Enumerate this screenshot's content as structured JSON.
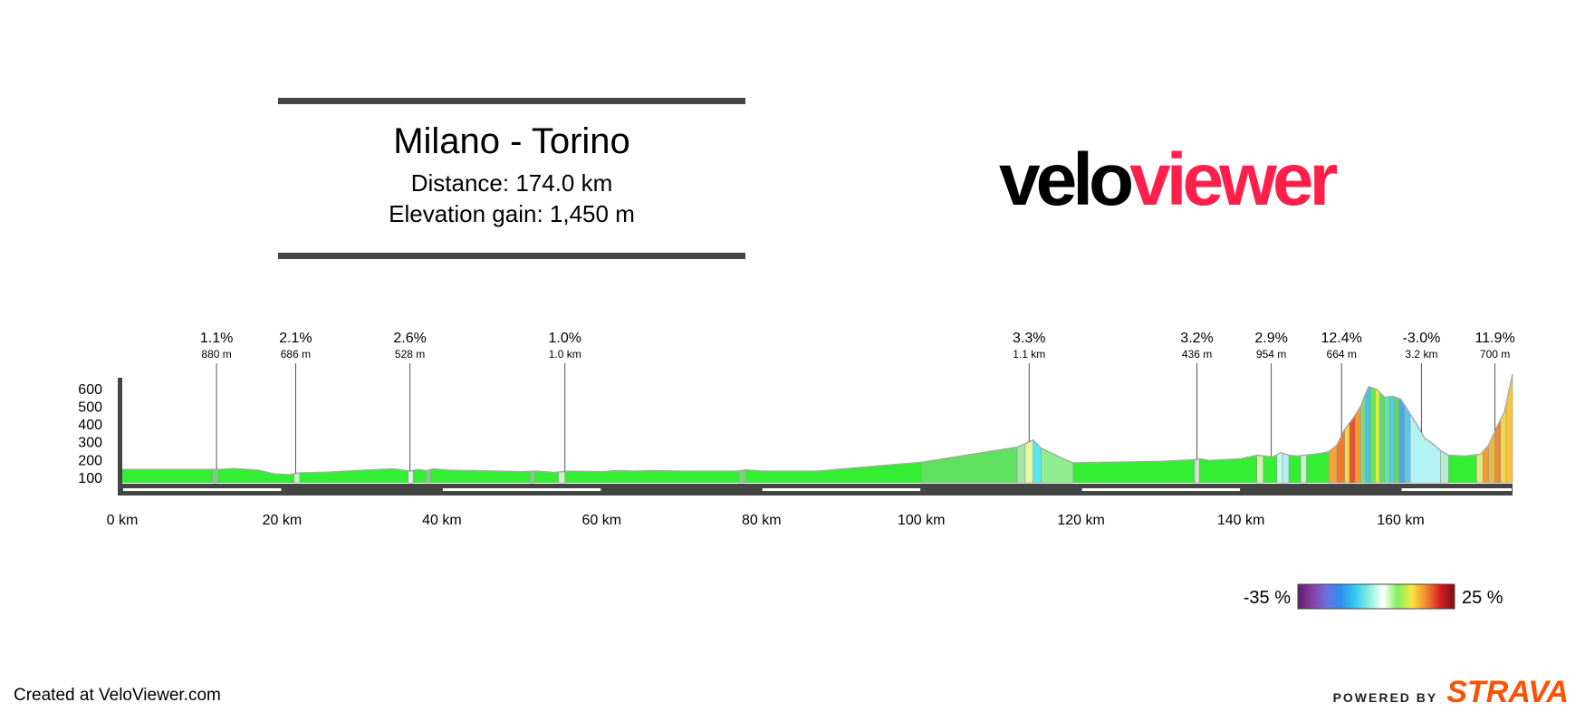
{
  "header": {
    "title": "Milano - Torino",
    "distance": "Distance: 174.0 km",
    "elevation_gain": "Elevation gain: 1,450 m"
  },
  "logo": {
    "part1": "velo",
    "part2": "viewer"
  },
  "footer": {
    "created": "Created at VeloViewer.com",
    "powered_by": "POWERED BY",
    "brand": "STRAVA"
  },
  "legend": {
    "min_label": "-35 %",
    "max_label": "25 %"
  },
  "colors": {
    "logo_accent": "#ff1f4b",
    "strava": "#fc5200",
    "axis": "#444444",
    "base_fill": "#33ee33"
  },
  "chart_data": {
    "type": "area",
    "title": "Milano - Torino",
    "x_unit": "km",
    "x_ticks": [
      "0 km",
      "20 km",
      "40 km",
      "60 km",
      "80 km",
      "100 km",
      "120 km",
      "140 km",
      "160 km"
    ],
    "x_tick_values": [
      0,
      20,
      40,
      60,
      80,
      100,
      120,
      140,
      160
    ],
    "y_ticks": [
      "100",
      "200",
      "300",
      "400",
      "500",
      "600"
    ],
    "y_tick_values": [
      100,
      200,
      300,
      400,
      500,
      600
    ],
    "xlim": [
      0,
      174
    ],
    "ylim": [
      60,
      700
    ],
    "profile": [
      [
        0,
        145
      ],
      [
        12,
        145
      ],
      [
        14,
        150
      ],
      [
        17,
        140
      ],
      [
        19,
        120
      ],
      [
        21,
        115
      ],
      [
        22,
        125
      ],
      [
        26,
        130
      ],
      [
        30,
        140
      ],
      [
        34,
        148
      ],
      [
        36,
        135
      ],
      [
        37,
        145
      ],
      [
        38,
        138
      ],
      [
        39,
        148
      ],
      [
        41,
        140
      ],
      [
        44,
        138
      ],
      [
        50,
        132
      ],
      [
        52,
        135
      ],
      [
        54,
        128
      ],
      [
        56,
        135
      ],
      [
        60,
        132
      ],
      [
        62,
        138
      ],
      [
        64,
        135
      ],
      [
        66,
        138
      ],
      [
        70,
        135
      ],
      [
        77,
        135
      ],
      [
        78,
        142
      ],
      [
        80,
        135
      ],
      [
        87,
        135
      ],
      [
        100,
        185
      ],
      [
        112,
        270
      ],
      [
        113,
        290
      ],
      [
        114,
        310
      ],
      [
        115,
        265
      ],
      [
        118,
        200
      ],
      [
        119,
        182
      ],
      [
        130,
        190
      ],
      [
        134,
        200
      ],
      [
        135,
        205
      ],
      [
        136,
        195
      ],
      [
        140,
        205
      ],
      [
        142,
        225
      ],
      [
        144,
        215
      ],
      [
        145,
        240
      ],
      [
        146,
        225
      ],
      [
        147,
        220
      ],
      [
        150,
        235
      ],
      [
        151,
        245
      ],
      [
        152,
        280
      ],
      [
        153,
        370
      ],
      [
        154,
        430
      ],
      [
        155,
        500
      ],
      [
        155.5,
        560
      ],
      [
        156,
        610
      ],
      [
        157,
        595
      ],
      [
        158,
        550
      ],
      [
        159,
        555
      ],
      [
        160,
        540
      ],
      [
        161,
        470
      ],
      [
        162,
        400
      ],
      [
        163,
        320
      ],
      [
        164,
        290
      ],
      [
        165,
        250
      ],
      [
        166,
        225
      ],
      [
        168,
        220
      ],
      [
        170,
        230
      ],
      [
        171,
        280
      ],
      [
        172,
        380
      ],
      [
        173,
        470
      ],
      [
        174,
        680
      ]
    ],
    "segments": [
      {
        "from": 11.3,
        "to": 12.0,
        "color": "#7bd07b"
      },
      {
        "from": 21.5,
        "to": 22.2,
        "color": "#c8f5c8"
      },
      {
        "from": 35.8,
        "to": 36.4,
        "color": "#f2f2f2"
      },
      {
        "from": 38.0,
        "to": 38.6,
        "color": "#7bd07b"
      },
      {
        "from": 51.0,
        "to": 51.6,
        "color": "#7bd07b"
      },
      {
        "from": 54.6,
        "to": 55.4,
        "color": "#c8f5c8"
      },
      {
        "from": 77.2,
        "to": 78.0,
        "color": "#7bd07b"
      },
      {
        "from": 100,
        "to": 112,
        "color": "#5fe05f"
      },
      {
        "from": 112,
        "to": 113,
        "color": "#a4e6a4"
      },
      {
        "from": 113,
        "to": 114,
        "color": "#e4f7a2"
      },
      {
        "from": 114,
        "to": 115,
        "color": "#55e8f0"
      },
      {
        "from": 115,
        "to": 119,
        "color": "#8fec8f"
      },
      {
        "from": 134.2,
        "to": 134.8,
        "color": "#dcdcdc"
      },
      {
        "from": 142,
        "to": 142.8,
        "color": "#d6f0b4"
      },
      {
        "from": 144.5,
        "to": 145.2,
        "color": "#c8fff0"
      },
      {
        "from": 145.2,
        "to": 146,
        "color": "#b9ecf7"
      },
      {
        "from": 147.5,
        "to": 148.2,
        "color": "#c8f5c8"
      },
      {
        "from": 151,
        "to": 152,
        "color": "#f4a23a"
      },
      {
        "from": 152,
        "to": 153,
        "color": "#f07a2a"
      },
      {
        "from": 153,
        "to": 153.6,
        "color": "#f5d640"
      },
      {
        "from": 153.6,
        "to": 154.3,
        "color": "#e6502a"
      },
      {
        "from": 154.3,
        "to": 155,
        "color": "#f59b2e"
      },
      {
        "from": 155,
        "to": 155.6,
        "color": "#7fd87f"
      },
      {
        "from": 155.6,
        "to": 156.2,
        "color": "#49c3e6"
      },
      {
        "from": 156.2,
        "to": 156.8,
        "color": "#62e65b"
      },
      {
        "from": 156.8,
        "to": 157.4,
        "color": "#e0ea3a"
      },
      {
        "from": 157.4,
        "to": 158,
        "color": "#4fe07a"
      },
      {
        "from": 158,
        "to": 158.6,
        "color": "#6ae6a0"
      },
      {
        "from": 158.6,
        "to": 159.2,
        "color": "#4fd0e6"
      },
      {
        "from": 159.2,
        "to": 159.8,
        "color": "#50e060"
      },
      {
        "from": 159.8,
        "to": 160.5,
        "color": "#4ba9e6"
      },
      {
        "from": 160.5,
        "to": 161.2,
        "color": "#5ac9f0"
      },
      {
        "from": 161.2,
        "to": 165,
        "color": "#b3f3f3"
      },
      {
        "from": 165,
        "to": 166,
        "color": "#b5ecd0"
      },
      {
        "from": 169.5,
        "to": 170.3,
        "color": "#e5e880"
      },
      {
        "from": 170.3,
        "to": 171,
        "color": "#f59b2e"
      },
      {
        "from": 171,
        "to": 171.8,
        "color": "#f4b73a"
      },
      {
        "from": 171.8,
        "to": 172.5,
        "color": "#e88a30"
      },
      {
        "from": 172.5,
        "to": 173.2,
        "color": "#f6d64a"
      },
      {
        "from": 173.2,
        "to": 174,
        "color": "#f7c43e"
      }
    ],
    "annotations": [
      {
        "x": 11.8,
        "grade": "1.1%",
        "length": "880 m"
      },
      {
        "x": 21.7,
        "grade": "2.1%",
        "length": "686 m"
      },
      {
        "x": 36.0,
        "grade": "2.6%",
        "length": "528 m"
      },
      {
        "x": 55.4,
        "grade": "1.0%",
        "length": "1.0 km"
      },
      {
        "x": 113.5,
        "grade": "3.3%",
        "length": "1.1 km"
      },
      {
        "x": 134.5,
        "grade": "3.2%",
        "length": "436 m"
      },
      {
        "x": 143.8,
        "grade": "2.9%",
        "length": "954 m"
      },
      {
        "x": 152.6,
        "grade": "12.4%",
        "length": "664 m"
      },
      {
        "x": 162.6,
        "grade": "-3.0%",
        "length": "3.2 km"
      },
      {
        "x": 171.8,
        "grade": "11.9%",
        "length": "700 m"
      }
    ],
    "gradient_legend": {
      "min": -35,
      "max": 25,
      "stops": [
        "#5a1f6e",
        "#8a3fa0",
        "#6f6fe0",
        "#2c8ff0",
        "#33c9f2",
        "#88f0dc",
        "#ffffff",
        "#80f060",
        "#f5e640",
        "#f08a30",
        "#d61f20",
        "#7a0d12"
      ]
    }
  }
}
